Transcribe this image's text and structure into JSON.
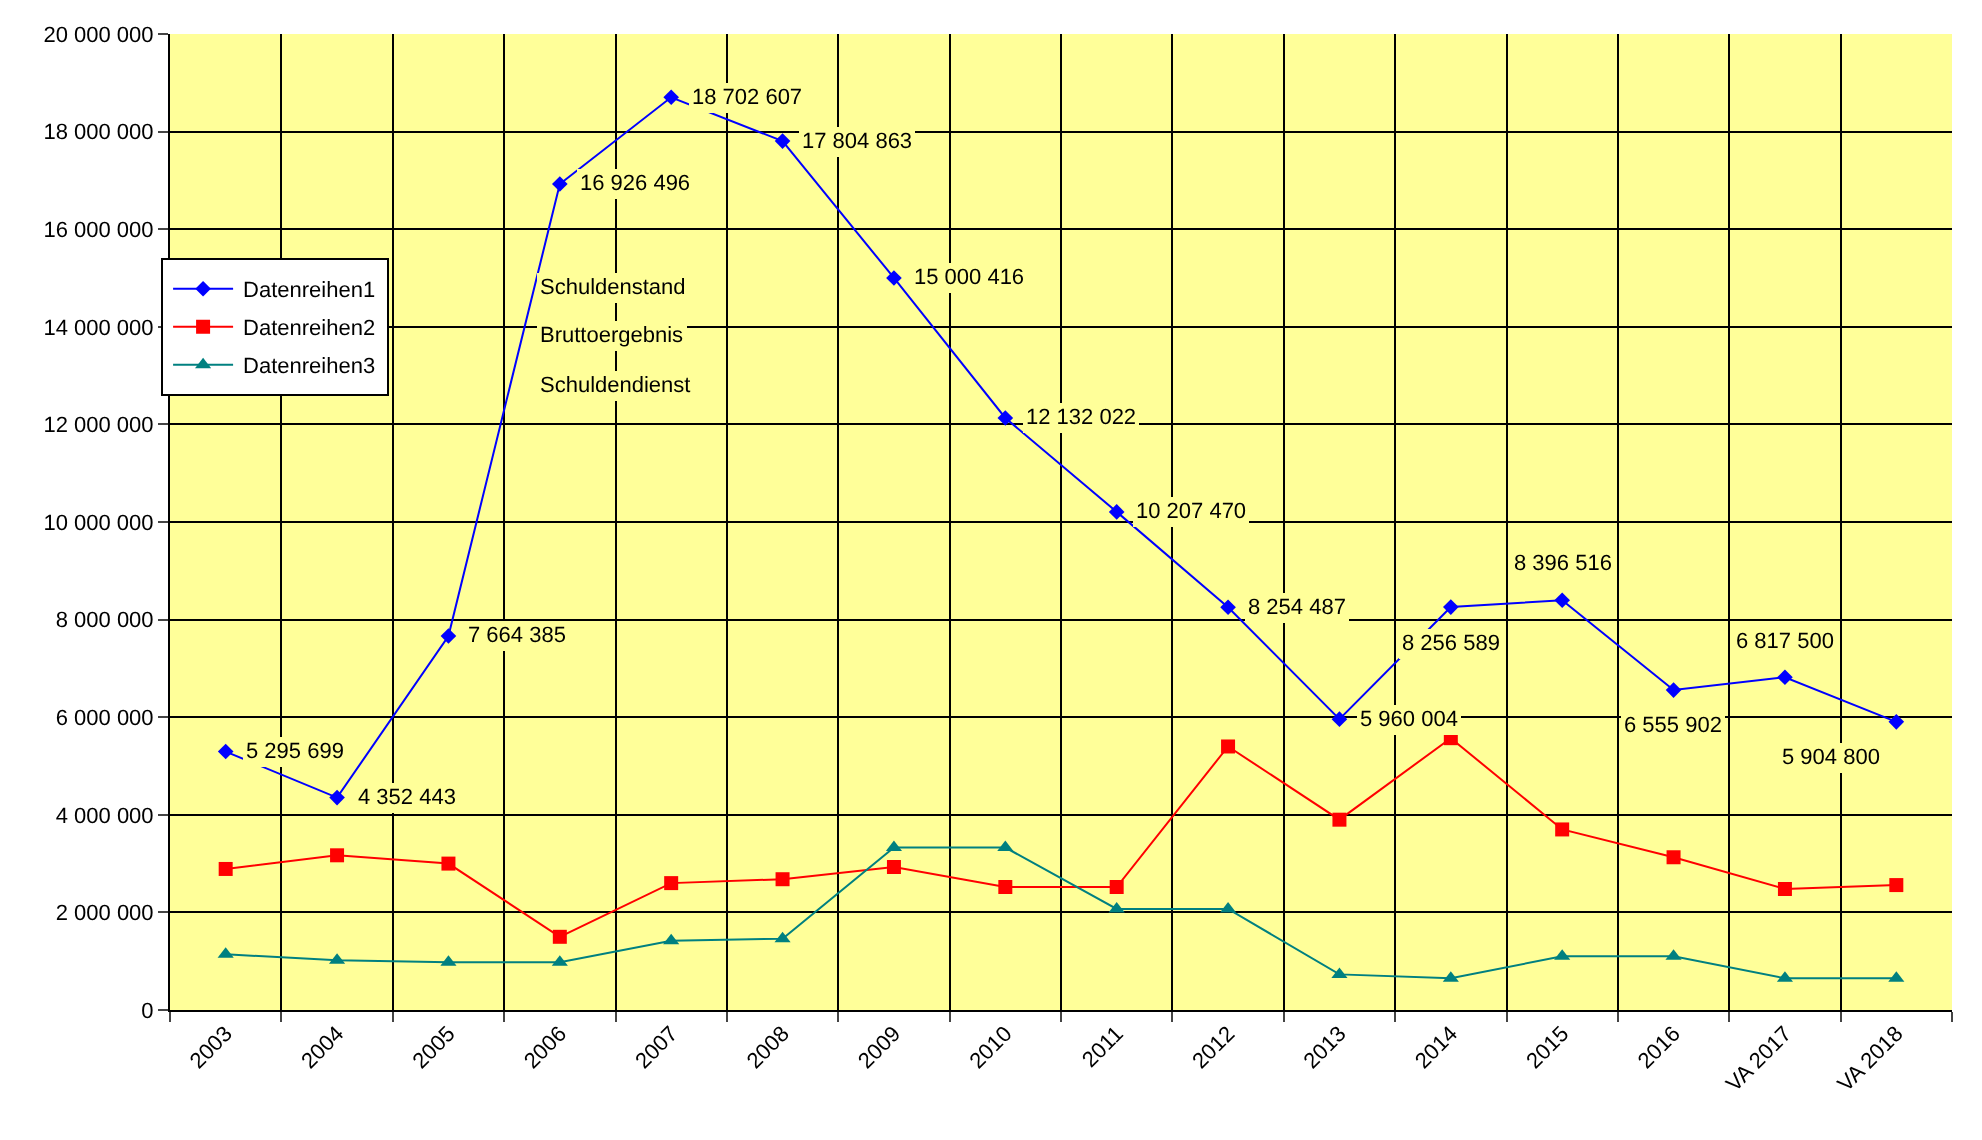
{
  "chart_data": {
    "type": "line",
    "categories": [
      "2003",
      "2004",
      "2005",
      "2006",
      "2007",
      "2008",
      "2009",
      "2010",
      "2011",
      "2012",
      "2013",
      "2014",
      "2015",
      "2016",
      "VA 2017",
      "VA 2018"
    ],
    "series": [
      {
        "name": "Datenreihen1",
        "color": "#0000ff",
        "marker": "diamond",
        "values": [
          5295699,
          4352443,
          7664385,
          16926496,
          18702607,
          17804863,
          15000416,
          12132022,
          10207470,
          8254487,
          5960004,
          8256589,
          8396516,
          6555902,
          6817500,
          5904800
        ],
        "value_labels": [
          "5 295 699",
          "4 352 443",
          "7 664 385",
          "16 926 496",
          "18 702 607",
          "17 804 863",
          "15 000 416",
          "12 132 022",
          "10 207 470",
          "8 254 487",
          "5 960 004",
          "8 256 589",
          "8 396 516",
          "6 555 902",
          "6 817 500",
          "5 904 800"
        ]
      },
      {
        "name": "Datenreihen2",
        "color": "#ff0000",
        "marker": "square",
        "values": [
          2890000,
          3170000,
          3000000,
          1500000,
          2600000,
          2680000,
          2930000,
          2520000,
          2520000,
          5400000,
          3900000,
          5570000,
          3700000,
          3130000,
          2480000,
          2560000
        ]
      },
      {
        "name": "Datenreihen3",
        "color": "#008080",
        "marker": "triangle",
        "values": [
          1140000,
          1020000,
          980000,
          980000,
          1420000,
          1460000,
          3330000,
          3330000,
          2070000,
          2070000,
          730000,
          650000,
          1100000,
          1100000,
          650000,
          650000
        ]
      }
    ],
    "ylim": [
      0,
      20000000
    ],
    "yticks": [
      {
        "value": 0,
        "label": "0"
      },
      {
        "value": 2000000,
        "label": "2 000 000"
      },
      {
        "value": 4000000,
        "label": "4 000 000"
      },
      {
        "value": 6000000,
        "label": "6 000 000"
      },
      {
        "value": 8000000,
        "label": "8 000 000"
      },
      {
        "value": 10000000,
        "label": "10 000 000"
      },
      {
        "value": 12000000,
        "label": "12 000 000"
      },
      {
        "value": 14000000,
        "label": "14 000 000"
      },
      {
        "value": 16000000,
        "label": "16 000 000"
      },
      {
        "value": 18000000,
        "label": "18 000 000"
      },
      {
        "value": 20000000,
        "label": "20 000 000"
      }
    ],
    "annotations": [
      "Schuldenstand",
      "Bruttoergebnis",
      "Schuldendienst"
    ],
    "grid": true,
    "legend": "left",
    "line_style": "solid"
  }
}
